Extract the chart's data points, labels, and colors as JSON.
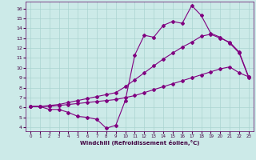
{
  "xlabel": "Windchill (Refroidissement éolien,°C)",
  "bg_color": "#cceae8",
  "line_color": "#800080",
  "grid_color": "#aad4d0",
  "x_ticks": [
    0,
    1,
    2,
    3,
    4,
    5,
    6,
    7,
    8,
    9,
    10,
    11,
    12,
    13,
    14,
    15,
    16,
    17,
    18,
    19,
    20,
    21,
    22,
    23
  ],
  "y_ticks": [
    4,
    5,
    6,
    7,
    8,
    9,
    10,
    11,
    12,
    13,
    14,
    15,
    16
  ],
  "ylim": [
    3.6,
    16.7
  ],
  "xlim": [
    -0.5,
    23.5
  ],
  "curve1_x": [
    0,
    1,
    2,
    3,
    4,
    5,
    6,
    7,
    8,
    9,
    10,
    11,
    12,
    13,
    14,
    15,
    16,
    17,
    18,
    19,
    20,
    21,
    22,
    23
  ],
  "curve1_y": [
    6.1,
    6.1,
    5.8,
    5.8,
    5.5,
    5.1,
    5.0,
    4.8,
    3.9,
    4.2,
    6.7,
    11.3,
    13.3,
    13.1,
    14.3,
    14.7,
    14.5,
    16.3,
    15.3,
    13.5,
    13.1,
    12.5,
    11.5,
    9.0
  ],
  "curve2_x": [
    0,
    1,
    2,
    3,
    4,
    5,
    6,
    7,
    8,
    9,
    10,
    11,
    12,
    13,
    14,
    15,
    16,
    17,
    18,
    19,
    20,
    21,
    22,
    23
  ],
  "curve2_y": [
    6.1,
    6.1,
    6.1,
    6.2,
    6.3,
    6.4,
    6.5,
    6.6,
    6.7,
    6.8,
    7.0,
    7.2,
    7.5,
    7.8,
    8.1,
    8.4,
    8.7,
    9.0,
    9.3,
    9.6,
    9.9,
    10.1,
    9.5,
    9.1
  ],
  "curve3_x": [
    0,
    1,
    2,
    3,
    4,
    5,
    6,
    7,
    8,
    9,
    10,
    11,
    12,
    13,
    14,
    15,
    16,
    17,
    18,
    19,
    20,
    21,
    22,
    23
  ],
  "curve3_y": [
    6.1,
    6.1,
    6.2,
    6.3,
    6.5,
    6.7,
    6.9,
    7.1,
    7.3,
    7.5,
    8.1,
    8.8,
    9.5,
    10.2,
    10.9,
    11.5,
    12.1,
    12.6,
    13.2,
    13.4,
    13.0,
    12.6,
    11.6,
    9.1
  ]
}
